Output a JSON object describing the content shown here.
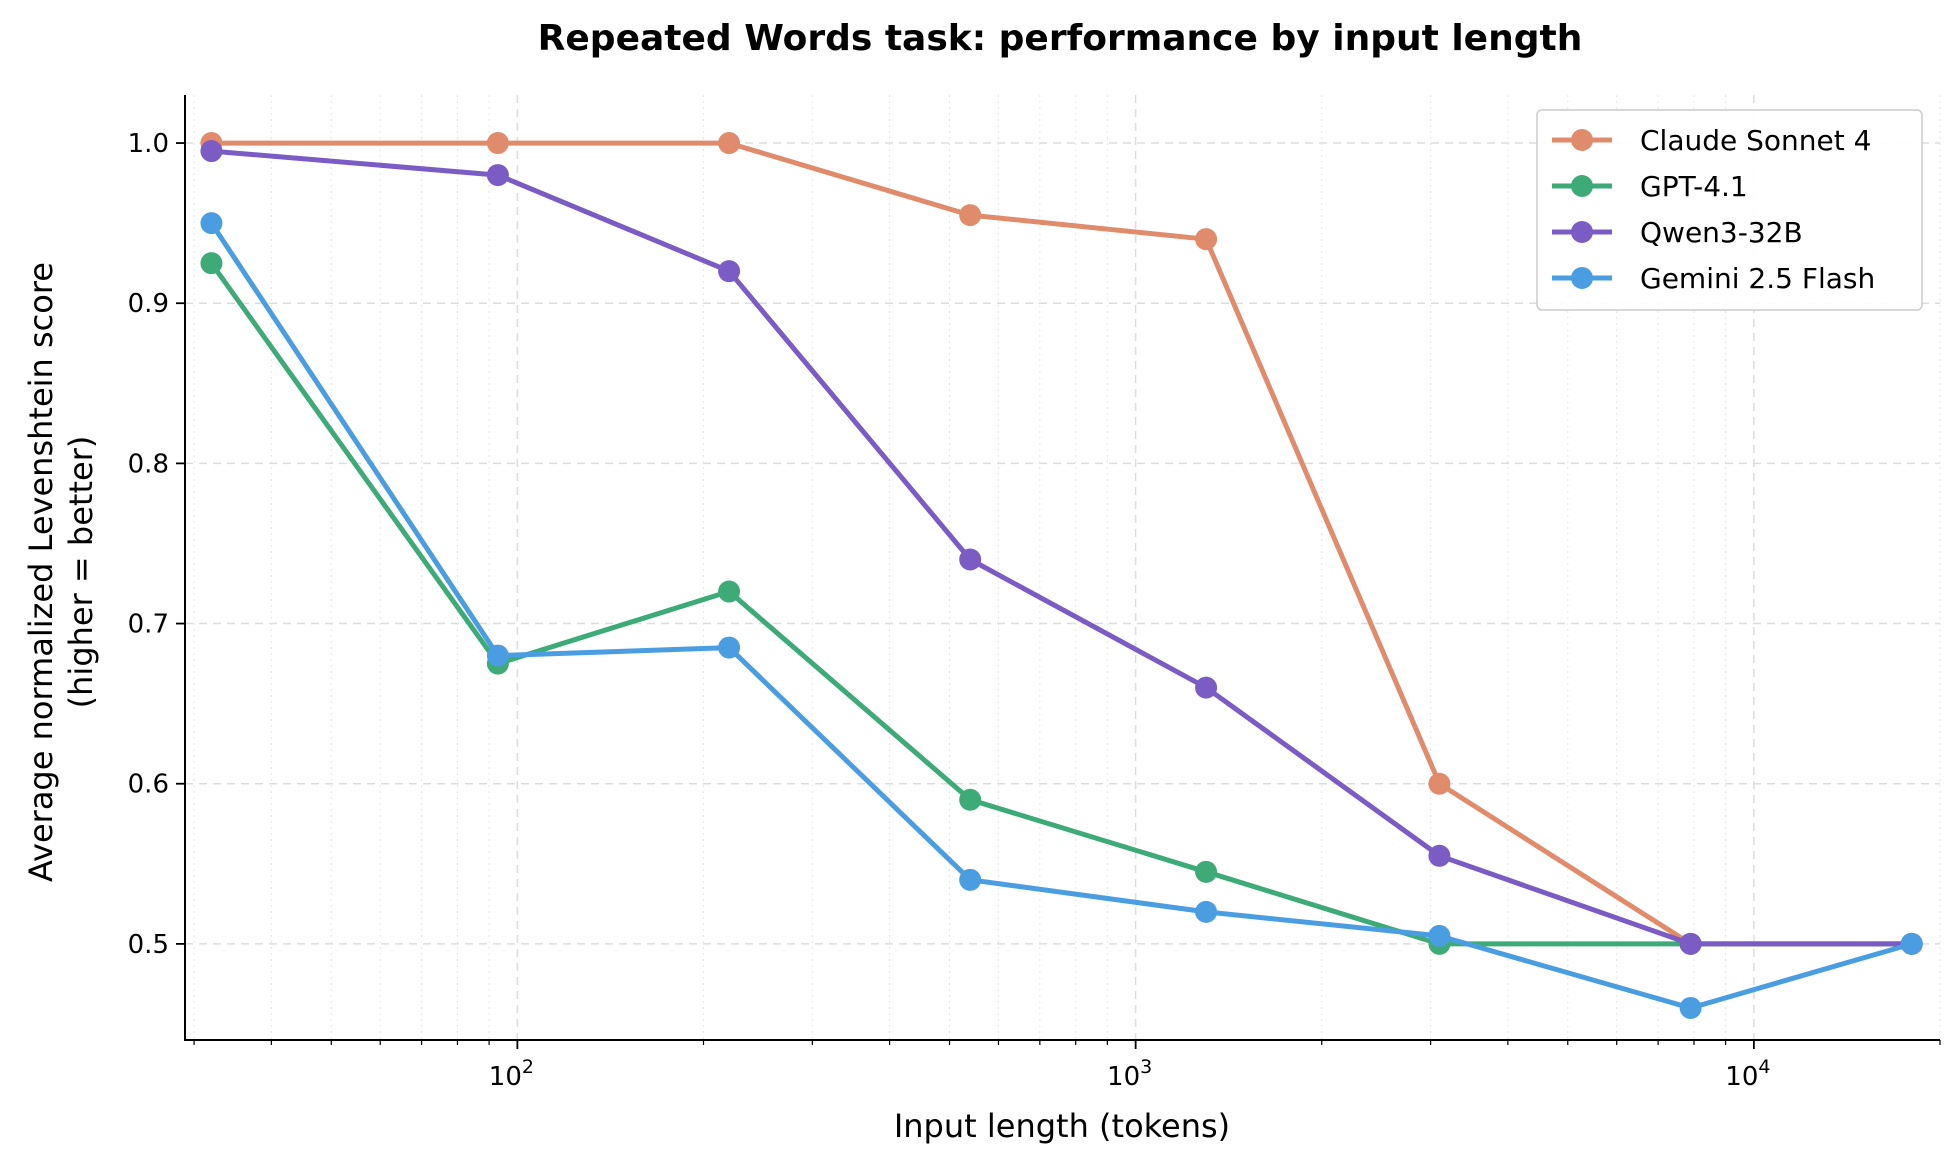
{
  "chart_data": {
    "type": "line",
    "title": "Repeated Words task: performance by input length",
    "xlabel": "Input length (tokens)",
    "ylabel_line1": "Average normalized Levenshtein score",
    "ylabel_line2": "(higher = better)",
    "x_scale": "log",
    "xlim": [
      29,
      20000
    ],
    "ylim": [
      0.44,
      1.03
    ],
    "x_ticks": [
      {
        "value": 100,
        "base": "10",
        "exp": "2"
      },
      {
        "value": 1000,
        "base": "10",
        "exp": "3"
      },
      {
        "value": 10000,
        "base": "10",
        "exp": "4"
      }
    ],
    "y_ticks": [
      0.5,
      0.6,
      0.7,
      0.8,
      0.9,
      1.0
    ],
    "y_tick_labels": [
      "0.5",
      "0.6",
      "0.7",
      "0.8",
      "0.9",
      "1.0"
    ],
    "grid": true,
    "legend_position": "top-right",
    "x": [
      32,
      93,
      220,
      540,
      1300,
      3100,
      7900,
      18000
    ],
    "series": [
      {
        "name": "Claude Sonnet 4",
        "color": "#E08B6C",
        "values": [
          1.0,
          1.0,
          1.0,
          0.955,
          0.94,
          0.6,
          0.5,
          0.5
        ]
      },
      {
        "name": "GPT-4.1",
        "color": "#3DAA78",
        "values": [
          0.925,
          0.675,
          0.72,
          0.59,
          0.545,
          0.5,
          0.5,
          0.5
        ]
      },
      {
        "name": "Qwen3-32B",
        "color": "#7B5CC4",
        "values": [
          0.995,
          0.98,
          0.92,
          0.74,
          0.66,
          0.555,
          0.5,
          0.5
        ]
      },
      {
        "name": "Gemini 2.5 Flash",
        "color": "#4A9DE0",
        "values": [
          0.95,
          0.68,
          0.685,
          0.54,
          0.52,
          0.505,
          0.46,
          0.5
        ]
      }
    ]
  }
}
